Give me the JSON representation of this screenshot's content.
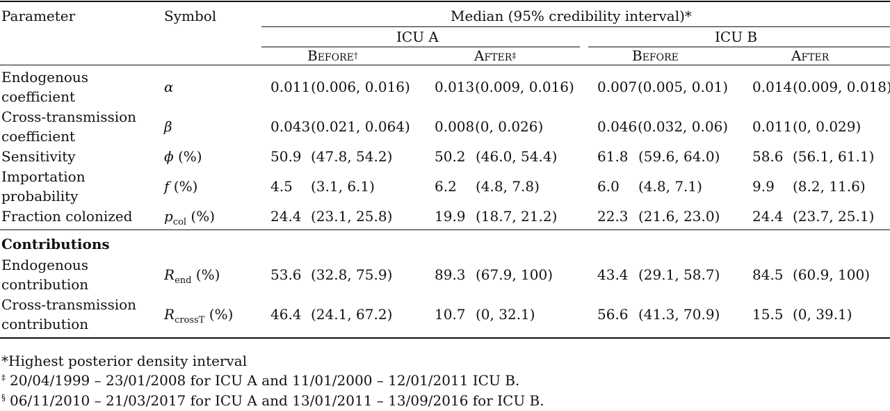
{
  "header": {
    "parameter": "Parameter",
    "symbol": "Symbol",
    "group_title": "Median (95% credibility interval)*",
    "icu_a": "ICU A",
    "icu_b": "ICU B",
    "before": "Before",
    "after": "After",
    "before_mark_a": "†",
    "after_mark_a": "‡"
  },
  "rows": [
    {
      "param": [
        "Endogenous",
        "coefficient"
      ],
      "sym": "α",
      "sub": "",
      "unit": "",
      "cells": [
        {
          "median": "0.011",
          "ci": "(0.006, 0.016)"
        },
        {
          "median": "0.013",
          "ci": "(0.009, 0.016)"
        },
        {
          "median": "0.007",
          "ci": "(0.005, 0.01)"
        },
        {
          "median": "0.014",
          "ci": "(0.009, 0.018)"
        }
      ]
    },
    {
      "param": [
        "Cross-transmission",
        "coefficient"
      ],
      "sym": "β",
      "sub": "",
      "unit": "",
      "cells": [
        {
          "median": "0.043",
          "ci": "(0.021, 0.064)"
        },
        {
          "median": "0.008",
          "ci": "(0, 0.026)"
        },
        {
          "median": "0.046",
          "ci": "(0.032, 0.06)"
        },
        {
          "median": "0.011",
          "ci": "(0, 0.029)"
        }
      ]
    },
    {
      "param": [
        "Sensitivity"
      ],
      "sym": "ϕ",
      "sub": "",
      "unit": " (%)",
      "cells": [
        {
          "median": "50.9",
          "ci": "(47.8, 54.2)"
        },
        {
          "median": "50.2",
          "ci": "(46.0, 54.4)"
        },
        {
          "median": "61.8",
          "ci": "(59.6, 64.0)"
        },
        {
          "median": "58.6",
          "ci": "(56.1, 61.1)"
        }
      ]
    },
    {
      "param": [
        "Importation",
        "probability"
      ],
      "sym": "f",
      "sub": "",
      "unit": " (%)",
      "cells": [
        {
          "median": "4.5",
          "ci": "(3.1, 6.1)"
        },
        {
          "median": "6.2",
          "ci": "(4.8, 7.8)"
        },
        {
          "median": "6.0",
          "ci": "(4.8, 7.1)"
        },
        {
          "median": "9.9",
          "ci": "(8.2, 11.6)"
        }
      ]
    },
    {
      "param": [
        "Fraction colonized"
      ],
      "sym": "p",
      "sub": "col",
      "unit": " (%)",
      "cells": [
        {
          "median": "24.4",
          "ci": "(23.1, 25.8)"
        },
        {
          "median": "19.9",
          "ci": "(18.7, 21.2)"
        },
        {
          "median": "22.3",
          "ci": "(21.6, 23.0)"
        },
        {
          "median": "24.4",
          "ci": "(23.7, 25.1)"
        }
      ]
    }
  ],
  "contributions_title": "Contributions",
  "contributions": [
    {
      "param": [
        "Endogenous",
        "contribution"
      ],
      "sym": "R",
      "sub": "end",
      "unit": " (%)",
      "cells": [
        {
          "median": "53.6",
          "ci": "(32.8, 75.9)"
        },
        {
          "median": "89.3",
          "ci": "(67.9, 100)"
        },
        {
          "median": "43.4",
          "ci": "(29.1, 58.7)"
        },
        {
          "median": "84.5",
          "ci": "(60.9, 100)"
        }
      ]
    },
    {
      "param": [
        "Cross-transmission",
        "contribution"
      ],
      "sym": "R",
      "sub": "crossT",
      "unit": " (%)",
      "cells": [
        {
          "median": "46.4",
          "ci": "(24.1, 67.2)"
        },
        {
          "median": "10.7",
          "ci": "(0, 32.1)"
        },
        {
          "median": "56.6",
          "ci": "(41.3, 70.9)"
        },
        {
          "median": "15.5",
          "ci": "(0, 39.1)"
        }
      ]
    }
  ],
  "footnotes": [
    {
      "mark": "",
      "text": "*Highest posterior density interval"
    },
    {
      "mark": "‡",
      "text": "20/04/1999 – 23/01/2008 for ICU A and 11/01/2000 – 12/01/2011 ICU B."
    },
    {
      "mark": "§",
      "text": "06/11/2010 – 21/03/2017 for ICU A and 13/01/2011 – 13/09/2016 for ICU B."
    }
  ]
}
